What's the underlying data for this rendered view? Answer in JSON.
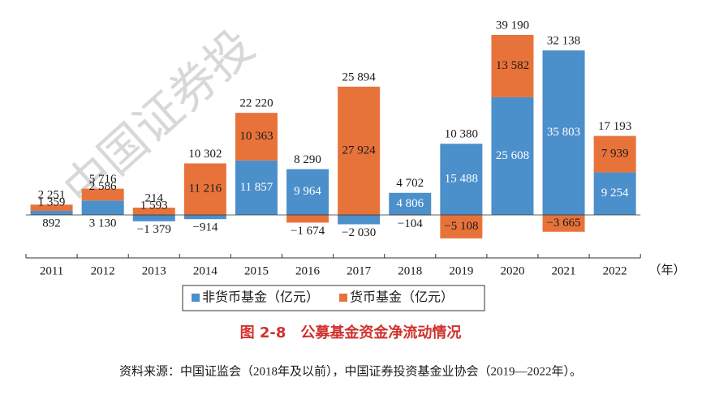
{
  "chart_data": {
    "type": "bar",
    "stacked": true,
    "categories": [
      "2011",
      "2012",
      "2013",
      "2014",
      "2015",
      "2016",
      "2017",
      "2018",
      "2019",
      "2020",
      "2021",
      "2022"
    ],
    "x_unit": "（年）",
    "series": [
      {
        "name": "非货币基金（亿元）",
        "color": "#4b8fcb",
        "values": [
          892,
          3130,
          -1379,
          -914,
          11857,
          9964,
          -2030,
          4806,
          15488,
          25608,
          35803,
          9254
        ],
        "value_labels": [
          "892",
          "3 130",
          "−1 379",
          "−914",
          "11 857",
          "9 964",
          "−2 030",
          "4 806",
          "15 488",
          "25 608",
          "35 803",
          "9 254"
        ]
      },
      {
        "name": "货币基金（亿元）",
        "color": "#e8733a",
        "values": [
          1359,
          2586,
          1593,
          11216,
          10363,
          -1674,
          27924,
          -104,
          -5108,
          13582,
          -3665,
          7939
        ],
        "value_labels": [
          "1 359",
          "2 586",
          "1 593",
          "11 216",
          "10 363",
          "−1 674",
          "27 924",
          "−104",
          "−5 108",
          "13 582",
          "−3 665",
          "7 939"
        ]
      }
    ],
    "totals": [
      2251,
      5716,
      214,
      10302,
      22220,
      8290,
      25894,
      4702,
      10380,
      39190,
      32138,
      17193
    ],
    "total_labels": [
      "2 251",
      "5 716",
      "214",
      "10 302",
      "22 220",
      "8 290",
      "25 894",
      "4 702",
      "10 380",
      "39 190",
      "32 138",
      "17 193"
    ],
    "title": "图 2-8　公募基金资金净流动情况",
    "source": "资料来源：中国证监会（2018年及以前），中国证券投资基金业协会（2019—2022年）。",
    "watermark": "中国证券投"
  }
}
